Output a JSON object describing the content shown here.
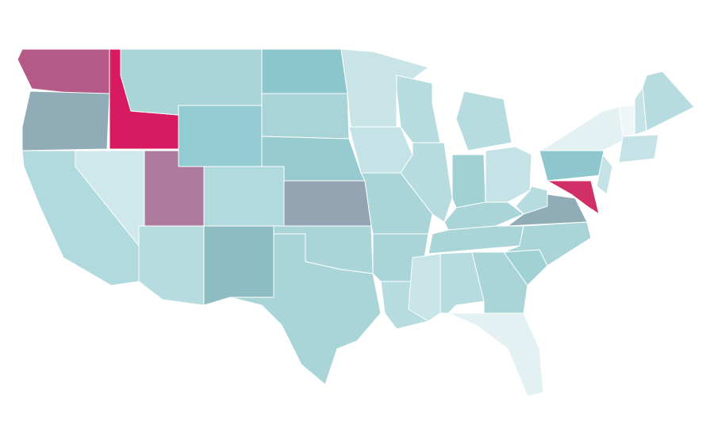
{
  "map": {
    "regions": [
      {
        "color": "#b55a87"
      },
      {
        "color": "#8facb7"
      },
      {
        "color": "#d81b60"
      },
      {
        "color": "#a9d5d8"
      },
      {
        "color": "#92cbd1"
      },
      {
        "color": "#8ac6cc"
      },
      {
        "color": "#a8d4d7"
      },
      {
        "color": "#96ccd0"
      },
      {
        "color": "#b0dadd"
      },
      {
        "color": "#cfe8eb"
      },
      {
        "color": "#ae7b9e"
      },
      {
        "color": "#b0dade"
      },
      {
        "color": "#b6dcdf"
      },
      {
        "color": "#8dbcc3"
      },
      {
        "color": "#94a4b3"
      },
      {
        "color": "#a9d5d8"
      },
      {
        "color": "#a9d5d8"
      },
      {
        "color": "#c8e4e7"
      },
      {
        "color": "#c5e3e6"
      },
      {
        "color": "#a9d5d8"
      },
      {
        "color": "#a9d5d8"
      },
      {
        "color": "#b6dcdf"
      },
      {
        "color": "#b6dcdf"
      },
      {
        "color": "#b6dcdf"
      },
      {
        "color": "#b6dcdf"
      },
      {
        "color": "#a0d1d5"
      },
      {
        "color": "#c5e3e6"
      },
      {
        "color": "#a9d5d8"
      },
      {
        "color": "#a9d5d8"
      },
      {
        "color": "#c8e4e7"
      },
      {
        "color": "#b6dcdf"
      },
      {
        "color": "#a9d5d8"
      },
      {
        "color": "#e3f1f3"
      },
      {
        "color": "#a0d1d5"
      },
      {
        "color": "#a9d5d8"
      },
      {
        "color": "#8facb7"
      },
      {
        "color": "#b6dcdf"
      },
      {
        "color": "#8ec8ce"
      },
      {
        "color": "#e3f1f3"
      },
      {
        "color": "#d02f68"
      },
      {
        "color": "#c5e3e6"
      },
      {
        "color": "#f0f5f7"
      },
      {
        "color": "#c5e3e6"
      },
      {
        "color": "#b6dcdf"
      },
      {
        "color": "#c5e3e6"
      }
    ]
  }
}
